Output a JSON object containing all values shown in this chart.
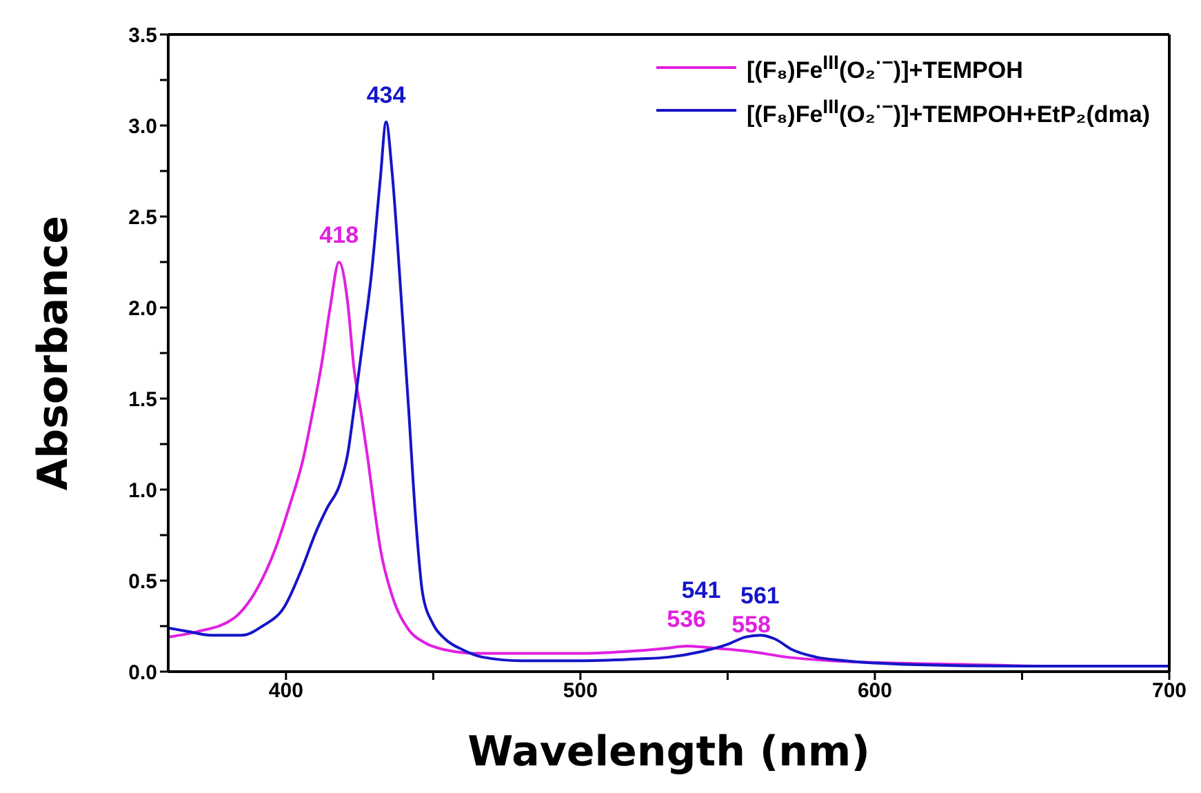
{
  "chart_data": {
    "type": "line",
    "xlabel": "Wavelength (nm)",
    "ylabel": "Absorbance",
    "xlim": [
      360,
      700
    ],
    "xticks": [
      400,
      {
        "value": 450,
        "label": null
      },
      500,
      {
        "value": 550,
        "label": null
      },
      600,
      {
        "value": 650,
        "label": null
      },
      700
    ],
    "ylim": [
      0,
      3.5
    ],
    "yticks": [
      {
        "value": 0,
        "label": "0.0"
      },
      {
        "value": 0.25,
        "label": null
      },
      {
        "value": 0.5,
        "label": "0.5"
      },
      {
        "value": 0.75,
        "label": null
      },
      {
        "value": 1,
        "label": "1.0"
      },
      {
        "value": 1.25,
        "label": null
      },
      {
        "value": 1.5,
        "label": "1.5"
      },
      {
        "value": 1.75,
        "label": null
      },
      {
        "value": 2,
        "label": "2.0"
      },
      {
        "value": 2.25,
        "label": null
      },
      {
        "value": 2.5,
        "label": "2.5"
      },
      {
        "value": 2.75,
        "label": null
      },
      {
        "value": 3,
        "label": "3.0"
      },
      {
        "value": 3.25,
        "label": null
      },
      {
        "value": 3.5,
        "label": "3.5"
      }
    ],
    "legend": "top right",
    "marker": "none",
    "line_style": "solid",
    "series": [
      {
        "name": "[(F₈)Fe$^{III}$(O₂$^{·−}$)]+TEMPOH",
        "color": "#e020e0",
        "x": [
          360,
          370,
          382,
          390,
          396.5,
          401,
          406,
          409,
          412,
          415,
          418,
          421,
          423,
          425.5,
          427.7,
          430,
          432,
          436,
          441.7,
          447,
          454,
          465,
          480,
          500,
          515,
          530,
          536,
          545,
          558,
          570,
          585,
          600,
          630,
          660,
          700
        ],
        "values": [
          0.19,
          0.22,
          0.29,
          0.45,
          0.68,
          0.9,
          1.18,
          1.42,
          1.68,
          2.0,
          2.25,
          2.02,
          1.68,
          1.42,
          1.18,
          0.9,
          0.68,
          0.42,
          0.23,
          0.16,
          0.12,
          0.1,
          0.1,
          0.1,
          0.11,
          0.13,
          0.14,
          0.13,
          0.11,
          0.08,
          0.06,
          0.05,
          0.04,
          0.03,
          0.03
        ]
      },
      {
        "name": "[(F₈)Fe$^{III}$(O₂$^{·−}$)]+TEMPOH+EtP₂(dma)",
        "color": "#1515c8",
        "x": [
          360,
          367,
          374.5,
          385,
          392,
          399.6,
          405,
          410.5,
          414,
          418.3,
          421,
          423,
          426,
          429,
          432,
          434,
          436,
          438.6,
          441.7,
          444,
          446.4,
          450,
          454,
          460,
          466.6,
          480,
          500,
          520,
          530,
          541,
          550,
          556,
          561,
          566,
          572,
          580,
          590,
          610,
          650,
          700
        ],
        "values": [
          0.24,
          0.22,
          0.2,
          0.2,
          0.25,
          0.36,
          0.55,
          0.78,
          0.9,
          1.03,
          1.2,
          1.43,
          1.8,
          2.18,
          2.7,
          3.02,
          2.75,
          2.18,
          1.43,
          0.85,
          0.43,
          0.26,
          0.18,
          0.12,
          0.08,
          0.06,
          0.06,
          0.07,
          0.08,
          0.11,
          0.15,
          0.19,
          0.2,
          0.18,
          0.12,
          0.08,
          0.06,
          0.04,
          0.03,
          0.03
        ]
      }
    ],
    "annotations": [
      {
        "text": "418",
        "x": 418,
        "y": 2.25
      },
      {
        "text": "434",
        "x": 434,
        "y": 3.02
      },
      {
        "text": "536",
        "x": 536,
        "y": 0.14
      },
      {
        "text": "541",
        "x": 541,
        "y": 0.11
      },
      {
        "text": "558",
        "x": 558,
        "y": 0.11
      },
      {
        "text": "561",
        "x": 561,
        "y": 0.2
      }
    ]
  }
}
